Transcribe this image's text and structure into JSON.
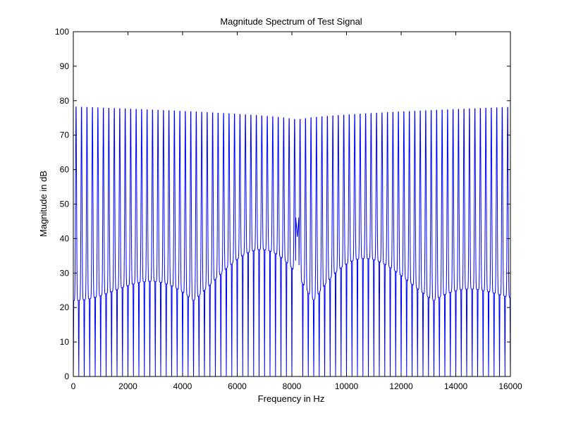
{
  "chart_data": {
    "type": "line",
    "title": "Magnitude Spectrum of Test Signal",
    "xlabel": "Frequency in Hz",
    "ylabel": "Magnitude in dB",
    "xlim": [
      0,
      16000
    ],
    "ylim": [
      0,
      100
    ],
    "xticks": [
      0,
      2000,
      4000,
      6000,
      8000,
      10000,
      12000,
      14000,
      16000
    ],
    "yticks": [
      0,
      10,
      20,
      30,
      40,
      50,
      60,
      70,
      80,
      90,
      100
    ],
    "xtick_labels": [
      "0",
      "2000",
      "4000",
      "6000",
      "8000",
      "10000",
      "12000",
      "14000",
      "16000"
    ],
    "ytick_labels": [
      "0",
      "10",
      "20",
      "30",
      "40",
      "50",
      "60",
      "70",
      "80",
      "90",
      "100"
    ],
    "grid": false,
    "legend": "none",
    "series": [
      {
        "color": "#0000ff",
        "description_of_shape": "dense spectrum of regularly spaced narrow peaks; peak heights about 78 dB at the ends falling to about 74 dB near 8200 Hz, symmetric about ~8200 Hz; a shallow local minimum near 40 dB at ~8200 Hz",
        "peaks": {
          "first_peak_hz": 100,
          "spacing_hz": 200,
          "last_peak_hz": 16000,
          "edge_level_db": 78.2,
          "center_level_db": 74.3,
          "center_hz": 8200
        },
        "floor_db": 0,
        "center_dip": {
          "x": 8200,
          "y": 40.5
        }
      }
    ]
  }
}
